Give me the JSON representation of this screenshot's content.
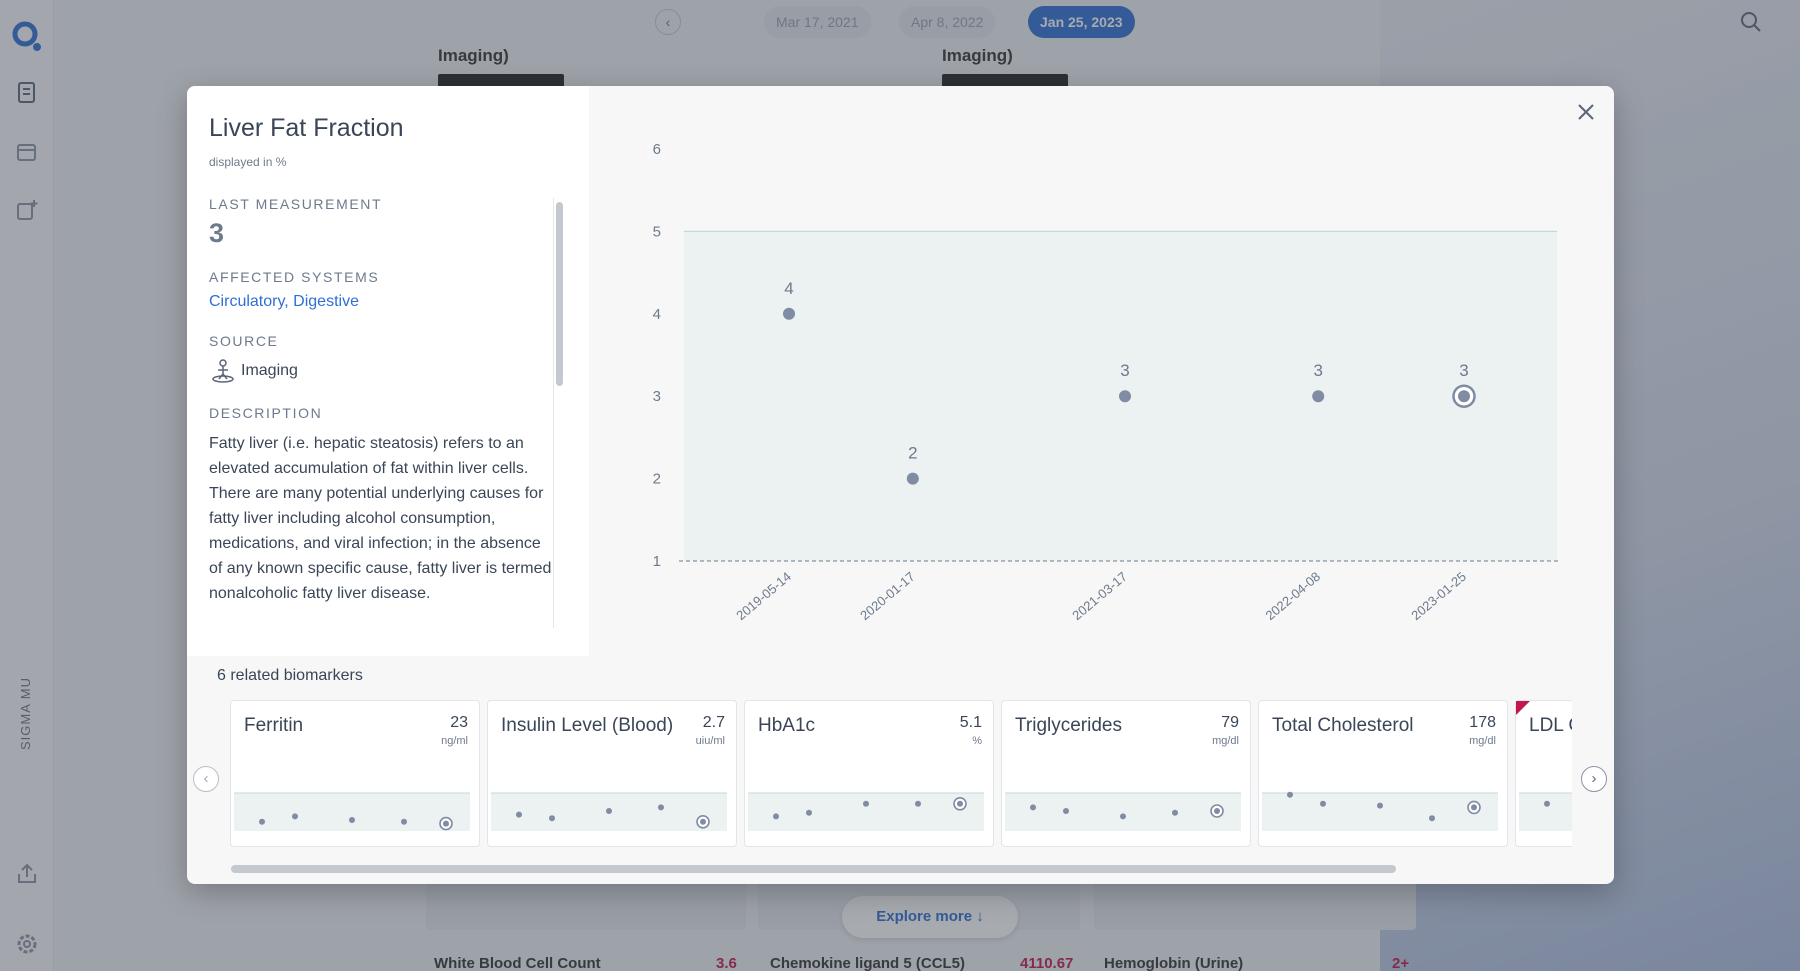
{
  "background": {
    "dates": [
      "Mar 17, 2021",
      "Apr 8, 2022",
      "Jan 25, 2023"
    ],
    "card_titles": [
      "Imaging)",
      "Imaging)"
    ],
    "bottom_cards": [
      {
        "title": "White Blood Cell Count",
        "value": "3.6"
      },
      {
        "title": "Chemokine ligand 5 (CCL5)",
        "value": "4110.67"
      },
      {
        "title": "Hemoglobin (Urine)",
        "value": "2+"
      }
    ],
    "explore_label": "Explore more ↓",
    "sidebar_label": "SIGMA MU"
  },
  "modal": {
    "title": "Liver Fat Fraction",
    "subtitle": "displayed in %",
    "last_measurement_label": "LAST MEASUREMENT",
    "last_measurement_value": "3",
    "affected_systems_label": "AFFECTED SYSTEMS",
    "affected_systems_value": "Circulatory, Digestive",
    "source_label": "SOURCE",
    "source_value": "Imaging",
    "description_label": "DESCRIPTION",
    "description": "Fatty liver (i.e. hepatic steatosis) refers to an elevated accumulation of fat within liver cells. There are many potential underlying causes for fatty liver including alcohol consumption, medications, and viral infection; in the absence of any known specific cause, fatty liver is termed nonalcoholic fatty liver disease.",
    "related_label": "6 related biomarkers"
  },
  "chart_data": {
    "type": "scatter",
    "x": [
      "2019-05-14",
      "2020-01-17",
      "2021-03-17",
      "2022-04-08",
      "2023-01-25"
    ],
    "y": [
      4,
      2,
      3,
      3,
      3
    ],
    "data_labels": [
      "4",
      "2",
      "3",
      "3",
      "3"
    ],
    "ylim": [
      1,
      6
    ],
    "yticks": [
      "6",
      "5",
      "4",
      "3",
      "2",
      "1"
    ],
    "reference_range": [
      1,
      5
    ],
    "highlighted_index": 4,
    "colors": {
      "point": "#7f8ca3",
      "band": "#ecf1f1",
      "band_line": "#c6d8d8"
    }
  },
  "related": [
    {
      "name": "Ferritin",
      "value": "23",
      "unit": "ng/ml",
      "flag": false,
      "spark": [
        0.2,
        0.35,
        0.25,
        0.2,
        0.15
      ]
    },
    {
      "name": "Insulin Level (Blood)",
      "value": "2.7",
      "unit": "uiu/ml",
      "flag": false,
      "spark": [
        0.4,
        0.3,
        0.5,
        0.6,
        0.2
      ]
    },
    {
      "name": "HbA1c",
      "value": "5.1",
      "unit": "%",
      "flag": false,
      "spark": [
        0.35,
        0.45,
        0.7,
        0.7,
        0.7
      ]
    },
    {
      "name": "Triglycerides",
      "value": "79",
      "unit": "mg/dl",
      "flag": false,
      "spark": [
        0.6,
        0.5,
        0.35,
        0.45,
        0.5
      ]
    },
    {
      "name": "Total Cholesterol",
      "value": "178",
      "unit": "mg/dl",
      "flag": false,
      "spark": [
        0.95,
        0.7,
        0.65,
        0.3,
        0.6
      ]
    },
    {
      "name": "LDL Cholesterol",
      "value": "",
      "unit": "",
      "flag": true,
      "spark": [
        0.7
      ]
    }
  ]
}
